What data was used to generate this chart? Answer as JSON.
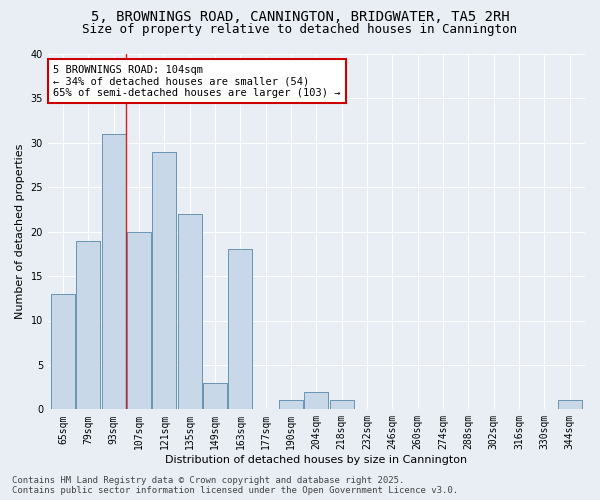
{
  "title": "5, BROWNINGS ROAD, CANNINGTON, BRIDGWATER, TA5 2RH",
  "subtitle": "Size of property relative to detached houses in Cannington",
  "xlabel": "Distribution of detached houses by size in Cannington",
  "ylabel": "Number of detached properties",
  "categories": [
    "65sqm",
    "79sqm",
    "93sqm",
    "107sqm",
    "121sqm",
    "135sqm",
    "149sqm",
    "163sqm",
    "177sqm",
    "190sqm",
    "204sqm",
    "218sqm",
    "232sqm",
    "246sqm",
    "260sqm",
    "274sqm",
    "288sqm",
    "302sqm",
    "316sqm",
    "330sqm",
    "344sqm"
  ],
  "values": [
    13,
    19,
    31,
    20,
    29,
    22,
    3,
    18,
    0,
    1,
    2,
    1,
    0,
    0,
    0,
    0,
    0,
    0,
    0,
    0,
    1
  ],
  "bar_color": "#c8d8e8",
  "bar_edge_color": "#5588aa",
  "background_color": "#e8eef4",
  "annotation_text": "5 BROWNINGS ROAD: 104sqm\n← 34% of detached houses are smaller (54)\n65% of semi-detached houses are larger (103) →",
  "annotation_box_color": "#ffffff",
  "annotation_box_edge": "#cc0000",
  "red_line_x": 2.5,
  "ylim": [
    0,
    40
  ],
  "yticks": [
    0,
    5,
    10,
    15,
    20,
    25,
    30,
    35,
    40
  ],
  "footer": "Contains HM Land Registry data © Crown copyright and database right 2025.\nContains public sector information licensed under the Open Government Licence v3.0.",
  "title_fontsize": 10,
  "subtitle_fontsize": 9,
  "axis_label_fontsize": 8,
  "tick_fontsize": 7,
  "annotation_fontsize": 7.5,
  "footer_fontsize": 6.5
}
